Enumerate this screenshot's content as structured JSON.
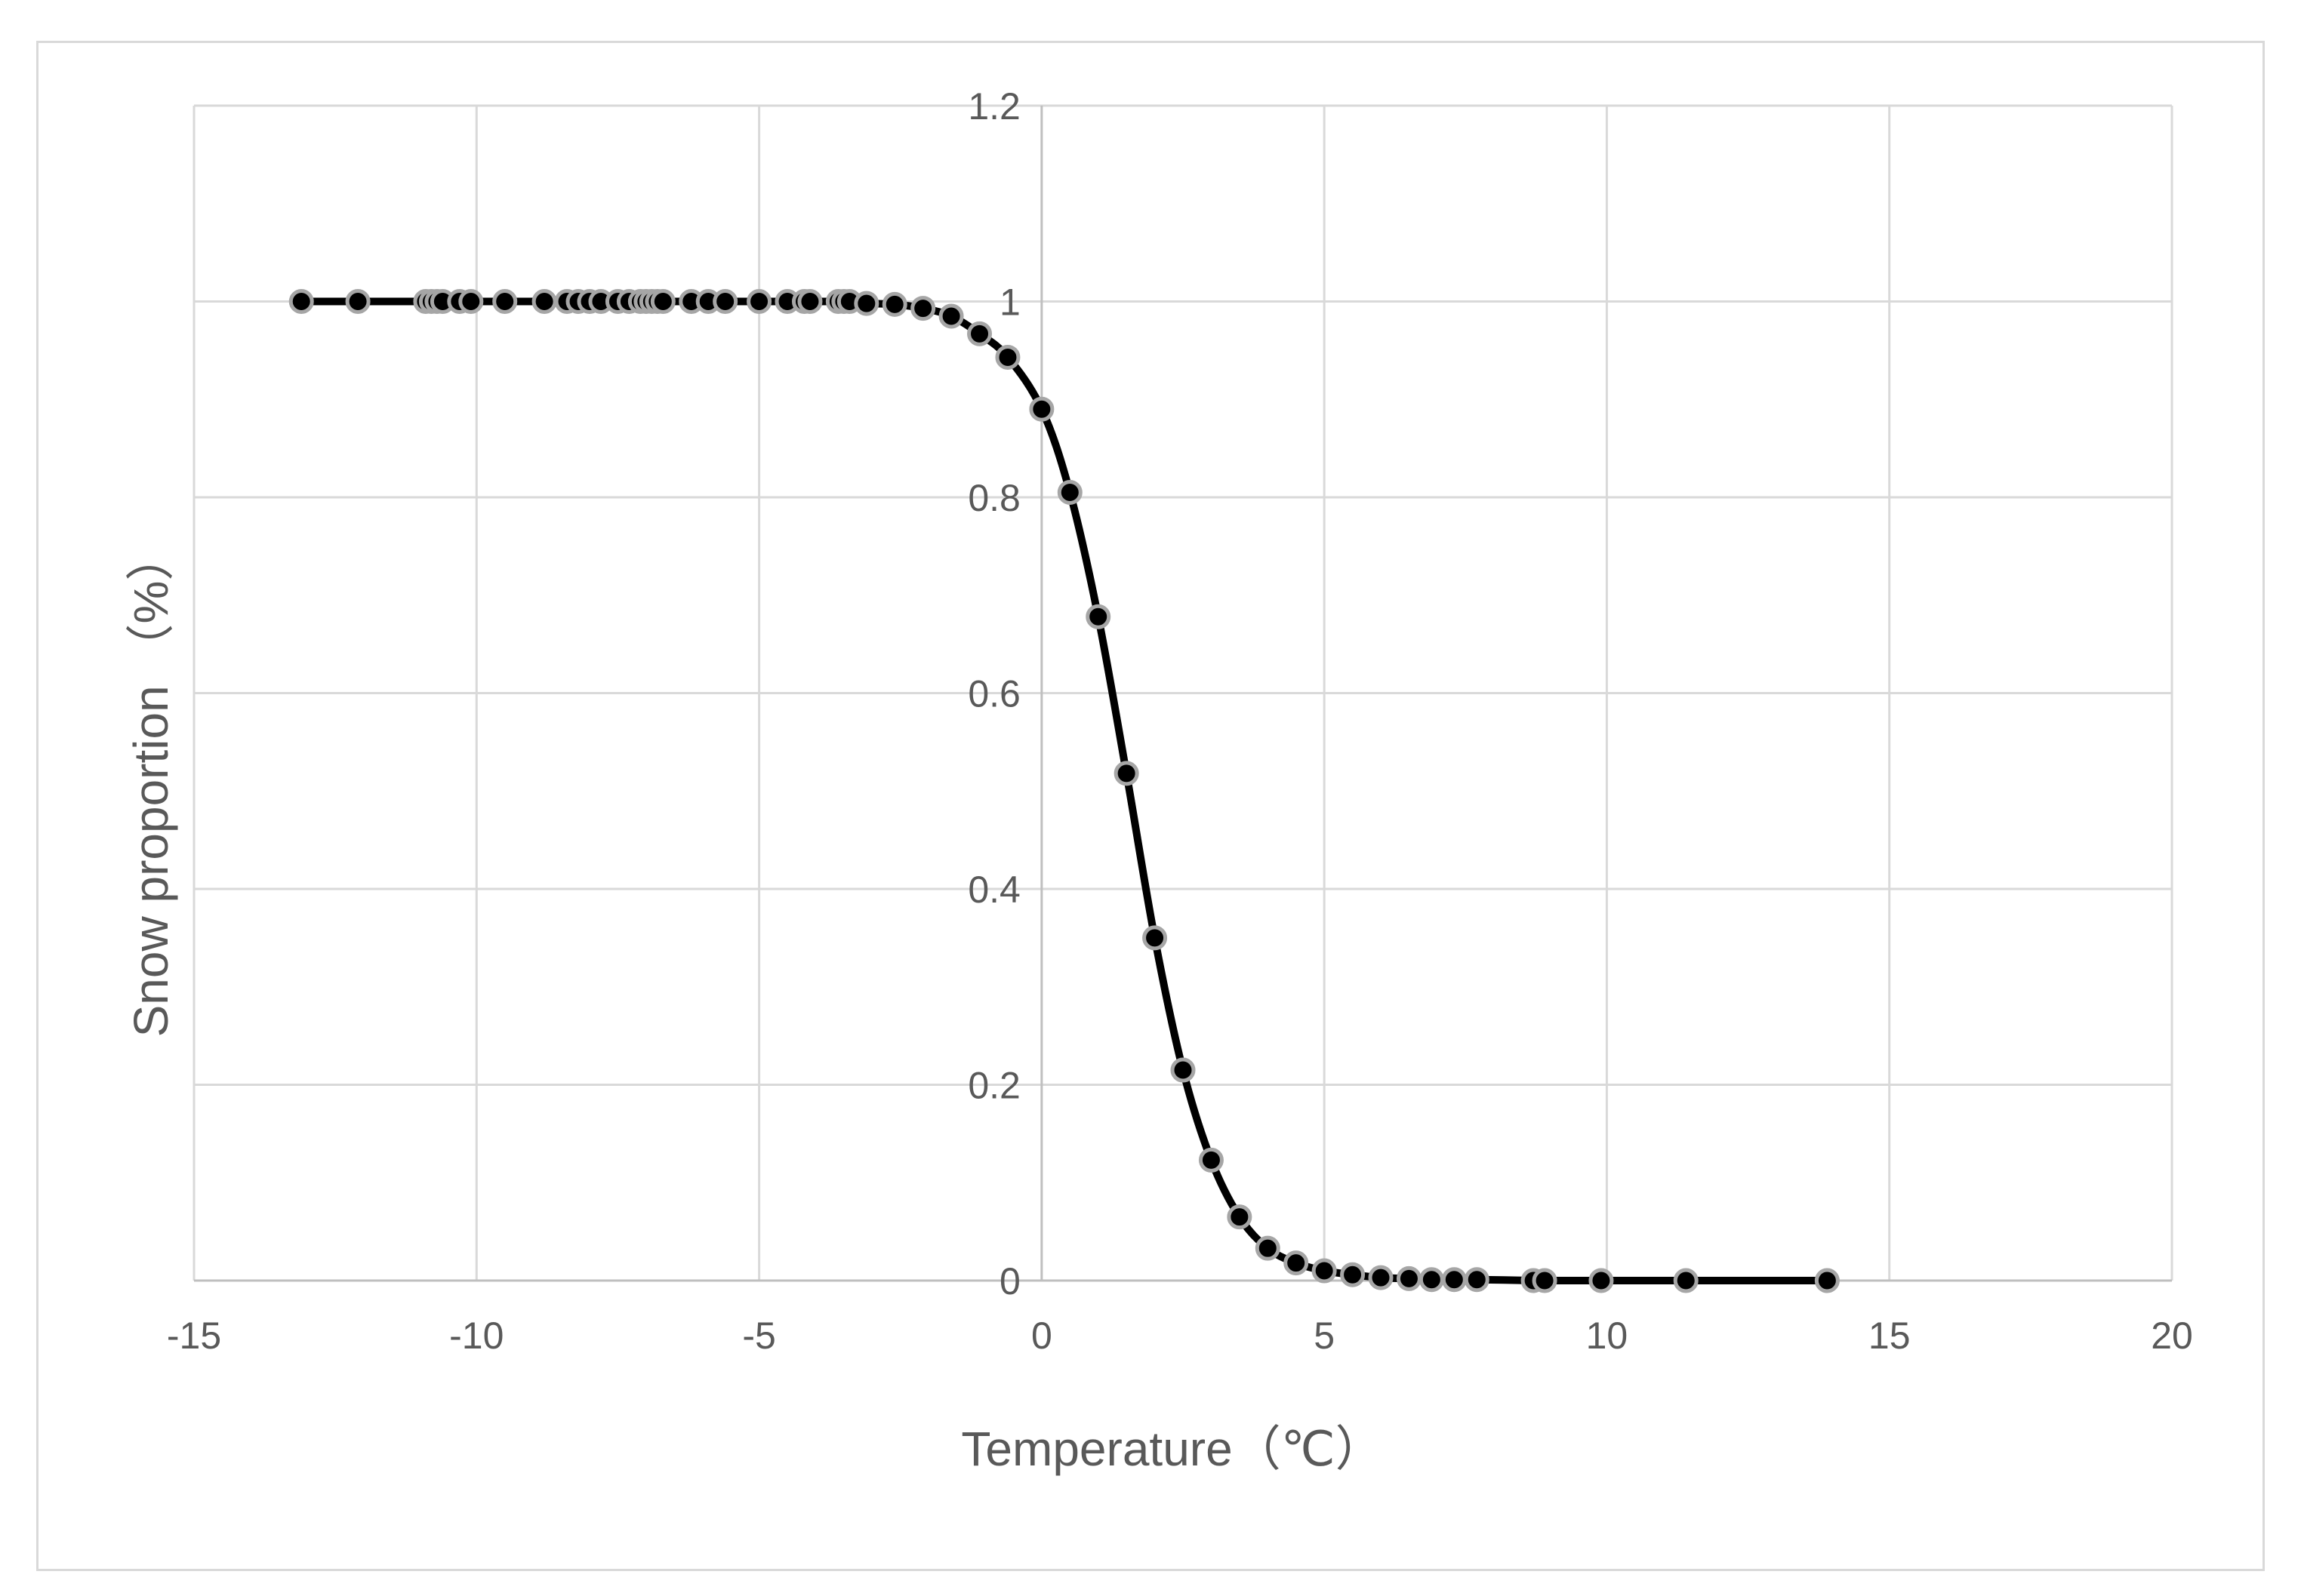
{
  "chart_data": {
    "type": "line",
    "title": "",
    "xlabel": "Temperature（℃）",
    "ylabel": "Snow proportion （%）",
    "xlim": [
      -15,
      20
    ],
    "ylim": [
      0,
      1.2
    ],
    "x_ticks": [
      -15,
      -10,
      -5,
      0,
      5,
      10,
      15,
      20
    ],
    "y_ticks": [
      0,
      0.2,
      0.4,
      0.6,
      0.8,
      1,
      1.2
    ],
    "grid": true,
    "legend": "none",
    "colors": {
      "line": "#000000",
      "marker_fill": "#000000",
      "marker_edge": "#a6a6a6",
      "grid": "#d9d9d9",
      "text": "#595959"
    },
    "series": [
      {
        "x": [
          -13.1,
          -12.1,
          -10.9,
          -10.8,
          -10.7,
          -10.6,
          -10.3,
          -10.1,
          -9.5,
          -8.8,
          -8.4,
          -8.2,
          -8.0,
          -7.8,
          -7.5,
          -7.3,
          -7.1,
          -7.0,
          -6.9,
          -6.8,
          -6.7,
          -6.2,
          -5.9,
          -5.6,
          -5.0,
          -4.5,
          -4.2,
          -4.1,
          -3.6,
          -3.5,
          -3.4,
          -3.1,
          -2.6,
          -2.1,
          -1.6,
          -1.1,
          -0.6,
          0.0,
          0.5,
          1.0,
          1.5,
          2.0,
          2.5,
          3.0,
          3.5,
          4.0,
          4.5,
          5.0,
          5.5,
          6.0,
          6.5,
          6.9,
          7.3,
          7.7,
          8.7,
          8.9,
          9.9,
          11.4,
          13.9
        ],
        "y": [
          1,
          1,
          1,
          1,
          1,
          1,
          1,
          1,
          1,
          1,
          1,
          1,
          1,
          1,
          1,
          1,
          1,
          1,
          1,
          1,
          1,
          1,
          1,
          1,
          1,
          1,
          1,
          1,
          1,
          1,
          1,
          0.998,
          0.997,
          0.993,
          0.985,
          0.967,
          0.943,
          0.89,
          0.805,
          0.678,
          0.518,
          0.35,
          0.215,
          0.123,
          0.065,
          0.033,
          0.018,
          0.01,
          0.006,
          0.003,
          0.002,
          0.001,
          0.001,
          0.001,
          0,
          0,
          0,
          0,
          0
        ]
      }
    ]
  }
}
